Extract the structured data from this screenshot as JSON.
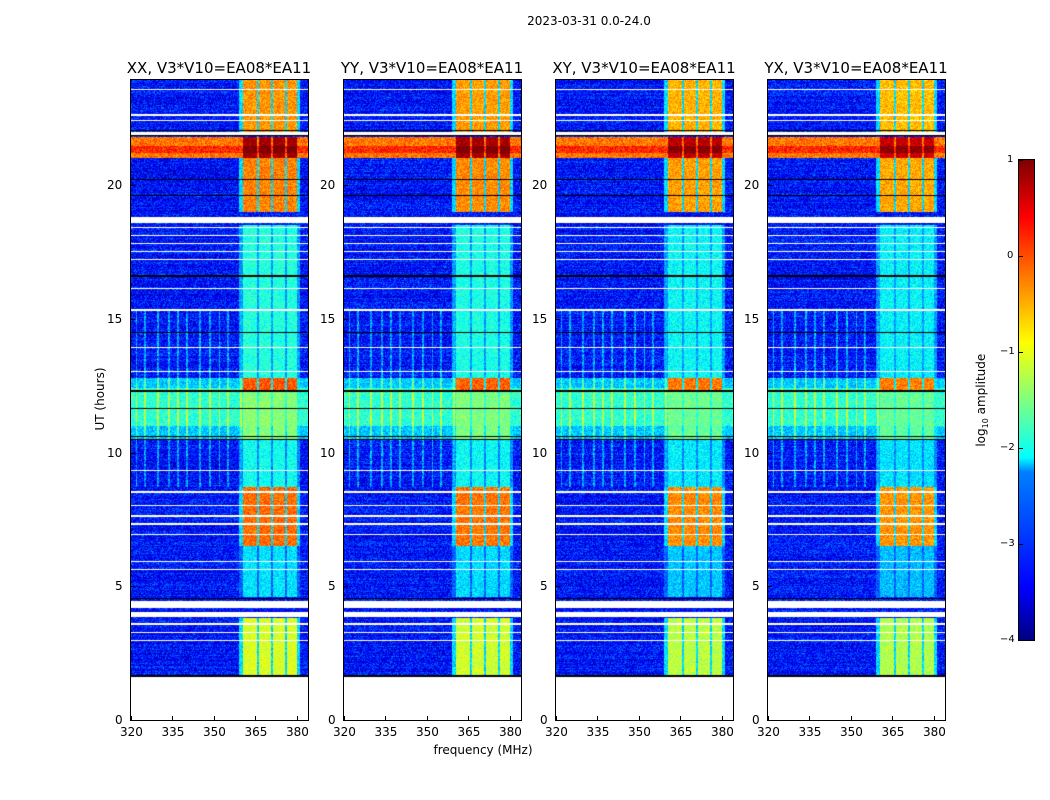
{
  "figure": {
    "suptitle": "2023-03-31 0.0-24.0",
    "ylabel": "UT (hours)",
    "xlabel": "frequency (MHz)",
    "colorbar_label_prefix": "log",
    "colorbar_label_sub": "10",
    "colorbar_label_suffix": " amplitude"
  },
  "chart_data": {
    "type": "heatmap",
    "colormap": "jet",
    "panels": [
      {
        "title": "XX, V3*V10=EA08*EA11",
        "level_offset": 0.15
      },
      {
        "title": "YY, V3*V10=EA08*EA11",
        "level_offset": 0.1
      },
      {
        "title": "XY, V3*V10=EA08*EA11",
        "level_offset": 0.0
      },
      {
        "title": "YX, V3*V10=EA08*EA11",
        "level_offset": -0.05
      }
    ],
    "x_range_mhz": [
      320,
      384
    ],
    "y_range_hours": [
      0,
      23.93
    ],
    "x_ticks": [
      "320",
      "335",
      "350",
      "365",
      "380"
    ],
    "x_tick_values": [
      320,
      335,
      350,
      365,
      380
    ],
    "y_ticks": [
      "0",
      "5",
      "10",
      "15",
      "20"
    ],
    "y_tick_values": [
      0,
      5,
      10,
      15,
      20
    ],
    "color_range": [
      -4,
      1
    ],
    "colorbar_ticks": [
      "1",
      "0",
      "−1",
      "−2",
      "−3",
      "−4"
    ],
    "colorbar_tick_values": [
      1,
      0,
      -1,
      -2,
      -3,
      -4
    ],
    "data_start_hour": 1.6,
    "background_level": -3.3,
    "rfi_bands_mhz": [
      [
        360.5,
        365.5
      ],
      [
        366.3,
        370.6
      ],
      [
        371.4,
        375.6
      ],
      [
        376.4,
        380
      ]
    ],
    "rfi_band_levels": [
      [
        1.7,
        3.8,
        -1.2
      ],
      [
        4.6,
        6.5,
        -2.4
      ],
      [
        6.5,
        8.7,
        -0.3
      ],
      [
        8.7,
        10.5,
        -2.2
      ],
      [
        10.5,
        12.3,
        -1.6
      ],
      [
        12.3,
        12.8,
        -0.2
      ],
      [
        12.8,
        18.5,
        -2.1
      ],
      [
        19.0,
        21.0,
        -0.4
      ],
      [
        21.0,
        21.8,
        0.7
      ],
      [
        22.0,
        23.93,
        -0.5
      ]
    ],
    "broadband_levels": [
      [
        10.5,
        11.0,
        -2.4
      ],
      [
        11.0,
        12.4,
        -1.9
      ],
      [
        12.4,
        12.8,
        -2.4
      ],
      [
        21.0,
        21.8,
        -0.2
      ]
    ],
    "flagged_white_hours": [
      [
        3.85,
        4.05
      ],
      [
        4.2,
        4.45
      ],
      [
        3.55,
        3.62
      ],
      [
        3.25,
        3.3
      ],
      [
        2.95,
        3.0
      ],
      [
        5.6,
        5.65
      ],
      [
        5.9,
        5.95
      ],
      [
        6.9,
        6.95
      ],
      [
        7.3,
        7.35
      ],
      [
        7.6,
        7.65
      ],
      [
        8.0,
        8.05
      ],
      [
        8.5,
        8.55
      ],
      [
        9.3,
        9.33
      ],
      [
        13.0,
        13.05
      ],
      [
        13.9,
        13.95
      ],
      [
        15.3,
        15.35
      ],
      [
        16.1,
        16.15
      ],
      [
        17.2,
        17.25
      ],
      [
        17.5,
        17.55
      ],
      [
        17.8,
        17.85
      ],
      [
        18.1,
        18.15
      ],
      [
        18.4,
        18.45
      ],
      [
        18.6,
        18.8
      ],
      [
        21.88,
        22.0
      ],
      [
        22.4,
        22.45
      ],
      [
        22.6,
        22.65
      ],
      [
        23.55,
        23.6
      ]
    ],
    "flagged_black_hours": [
      1.65,
      4.55,
      10.5,
      10.6,
      11.65,
      12.3,
      14.5,
      16.6,
      20.2,
      21.85,
      22.05,
      19.6
    ]
  }
}
